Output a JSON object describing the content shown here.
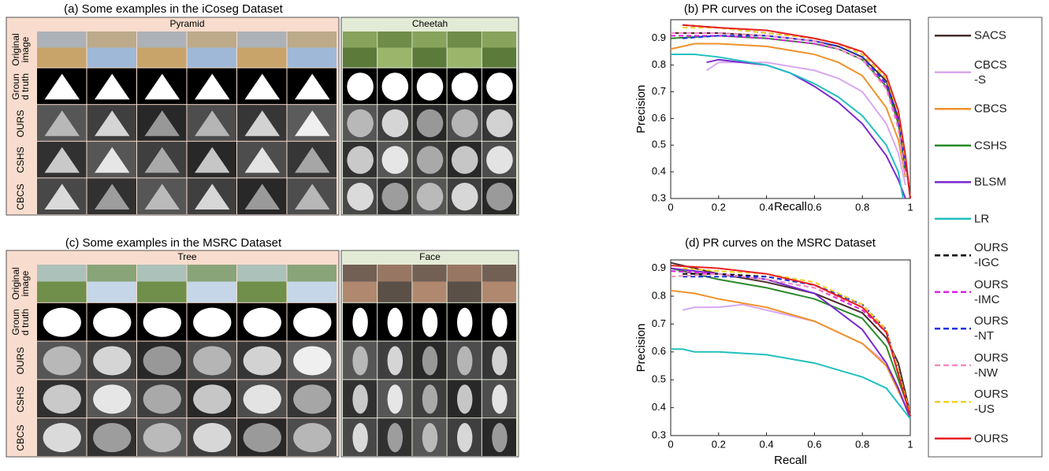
{
  "panels": [
    {
      "title": "(a) Some examples in the iCoseg Dataset",
      "groups": [
        "Pyramid",
        "Cheetah"
      ],
      "rows": [
        "Original\nimage",
        "Groun\nd truth",
        "OURS",
        "CSHS",
        "CBCS"
      ]
    },
    {
      "title": "(c) Some examples in the MSRC Dataset",
      "groups": [
        "Tree",
        "Face"
      ],
      "rows": [
        "Original\nimage",
        "Groun\nd truth",
        "OURS",
        "CSHS",
        "CBCS"
      ]
    }
  ],
  "chart_data": [
    {
      "type": "line",
      "title": "(b) PR curves on the iCoseg Dataset",
      "x_label": "Recall",
      "y_label": "Precision",
      "xlim": [
        0,
        1
      ],
      "ylim": [
        0.3,
        0.97
      ],
      "xticks": [
        0,
        0.2,
        0.4,
        0.6,
        0.8,
        1
      ],
      "yticks": [
        0.3,
        0.4,
        0.5,
        0.6,
        0.7,
        0.8,
        0.9
      ],
      "series": [
        {
          "name": "SACS",
          "color": "#4a2c2c",
          "dashed": false,
          "x": [
            0,
            0.2,
            0.4,
            0.6,
            0.7,
            0.8,
            0.9,
            0.95,
            0.98,
            1
          ],
          "values": [
            0.92,
            0.92,
            0.91,
            0.89,
            0.87,
            0.83,
            0.74,
            0.6,
            0.45,
            0.3
          ]
        },
        {
          "name": "CBCS\n-S",
          "color": "#d8a8f0",
          "dashed": false,
          "x": [
            0.15,
            0.2,
            0.4,
            0.6,
            0.7,
            0.8,
            0.9,
            0.95,
            0.98
          ],
          "values": [
            0.78,
            0.81,
            0.81,
            0.78,
            0.75,
            0.7,
            0.58,
            0.47,
            0.35
          ]
        },
        {
          "name": "CBCS",
          "color": "#f0922a",
          "dashed": false,
          "x": [
            0,
            0.1,
            0.2,
            0.4,
            0.6,
            0.7,
            0.8,
            0.9,
            0.95,
            0.98
          ],
          "values": [
            0.86,
            0.88,
            0.88,
            0.87,
            0.84,
            0.81,
            0.76,
            0.64,
            0.52,
            0.38
          ]
        },
        {
          "name": "CSHS",
          "color": "#2a8a2a",
          "dashed": false,
          "x": [
            0,
            0.2,
            0.4,
            0.6,
            0.7,
            0.8,
            0.9,
            0.95,
            0.98
          ],
          "values": [
            0.9,
            0.91,
            0.9,
            0.88,
            0.86,
            0.82,
            0.72,
            0.58,
            0.4
          ]
        },
        {
          "name": "BLSM",
          "color": "#7a2ad0",
          "dashed": false,
          "x": [
            0.15,
            0.2,
            0.3,
            0.4,
            0.5,
            0.6,
            0.7,
            0.8,
            0.9,
            0.95,
            0.98
          ],
          "values": [
            0.81,
            0.82,
            0.81,
            0.8,
            0.77,
            0.72,
            0.66,
            0.58,
            0.46,
            0.37,
            0.3
          ]
        },
        {
          "name": "LR",
          "color": "#22c0c0",
          "dashed": false,
          "x": [
            0,
            0.1,
            0.2,
            0.4,
            0.5,
            0.6,
            0.7,
            0.8,
            0.9,
            0.95,
            0.97
          ],
          "values": [
            0.84,
            0.84,
            0.83,
            0.8,
            0.77,
            0.73,
            0.68,
            0.61,
            0.5,
            0.4,
            0.3
          ]
        },
        {
          "name": "OURS\n-IGC",
          "color": "#000000",
          "dashed": true,
          "x": [
            0.05,
            0.2,
            0.4,
            0.6,
            0.7,
            0.8,
            0.9,
            0.95,
            0.98,
            1
          ],
          "values": [
            0.95,
            0.94,
            0.92,
            0.9,
            0.88,
            0.84,
            0.75,
            0.62,
            0.45,
            0.3
          ]
        },
        {
          "name": "OURS\n-IMC",
          "color": "#e020e0",
          "dashed": true,
          "x": [
            0,
            0.2,
            0.4,
            0.6,
            0.7,
            0.8,
            0.9,
            0.95,
            0.98
          ],
          "values": [
            0.91,
            0.91,
            0.9,
            0.88,
            0.86,
            0.82,
            0.72,
            0.58,
            0.4
          ]
        },
        {
          "name": "OURS\n-NT",
          "color": "#2030e0",
          "dashed": true,
          "x": [
            0.05,
            0.2,
            0.4,
            0.6,
            0.7,
            0.8,
            0.9,
            0.95,
            0.98
          ],
          "values": [
            0.9,
            0.91,
            0.91,
            0.89,
            0.87,
            0.83,
            0.73,
            0.6,
            0.42
          ]
        },
        {
          "name": "OURS\n-NW",
          "color": "#f090c0",
          "dashed": true,
          "x": [
            0,
            0.2,
            0.4,
            0.6,
            0.7,
            0.8,
            0.9,
            0.95,
            0.98
          ],
          "values": [
            0.92,
            0.92,
            0.91,
            0.89,
            0.86,
            0.82,
            0.71,
            0.56,
            0.38
          ]
        },
        {
          "name": "OURS\n-US",
          "color": "#f0d020",
          "dashed": true,
          "x": [
            0.05,
            0.2,
            0.4,
            0.6,
            0.7,
            0.8,
            0.9,
            0.95,
            0.98
          ],
          "values": [
            0.94,
            0.94,
            0.92,
            0.9,
            0.88,
            0.84,
            0.75,
            0.62,
            0.44
          ]
        },
        {
          "name": "OURS",
          "color": "#e82020",
          "dashed": false,
          "x": [
            0.05,
            0.2,
            0.4,
            0.6,
            0.7,
            0.8,
            0.9,
            0.95,
            0.98,
            1
          ],
          "values": [
            0.95,
            0.94,
            0.93,
            0.9,
            0.88,
            0.85,
            0.76,
            0.63,
            0.46,
            0.3
          ]
        }
      ]
    },
    {
      "type": "line",
      "title": "(d) PR curves on the MSRC Dataset",
      "x_label": "Recall",
      "y_label": "Precision",
      "xlim": [
        0,
        1
      ],
      "ylim": [
        0.3,
        0.93
      ],
      "xticks": [
        0,
        0.2,
        0.4,
        0.6,
        0.8,
        1
      ],
      "yticks": [
        0.3,
        0.4,
        0.5,
        0.6,
        0.7,
        0.8,
        0.9
      ],
      "series": [
        {
          "color": "#4a2c2c",
          "dashed": false,
          "x": [
            0,
            0.2,
            0.4,
            0.6,
            0.8,
            0.9,
            0.95,
            1
          ],
          "values": [
            0.92,
            0.88,
            0.85,
            0.81,
            0.74,
            0.65,
            0.56,
            0.38
          ]
        },
        {
          "color": "#d8a8f0",
          "dashed": false,
          "x": [
            0.05,
            0.1,
            0.2,
            0.3,
            0.35,
            0.4,
            0.6,
            0.8,
            0.9,
            1
          ],
          "values": [
            0.75,
            0.76,
            0.76,
            0.77,
            0.76,
            0.75,
            0.71,
            0.63,
            0.56,
            0.37
          ]
        },
        {
          "color": "#f0922a",
          "dashed": false,
          "x": [
            0,
            0.1,
            0.2,
            0.4,
            0.6,
            0.8,
            0.9,
            1
          ],
          "values": [
            0.82,
            0.81,
            0.79,
            0.76,
            0.71,
            0.63,
            0.55,
            0.37
          ]
        },
        {
          "color": "#2a8a2a",
          "dashed": false,
          "x": [
            0,
            0.2,
            0.4,
            0.6,
            0.8,
            0.9,
            1
          ],
          "values": [
            0.9,
            0.86,
            0.83,
            0.79,
            0.72,
            0.62,
            0.38
          ]
        },
        {
          "color": "#7a2ad0",
          "dashed": false,
          "x": [
            0,
            0.2,
            0.4,
            0.6,
            0.8,
            0.9,
            0.95,
            1
          ],
          "values": [
            0.9,
            0.88,
            0.86,
            0.81,
            0.68,
            0.56,
            0.47,
            0.36
          ]
        },
        {
          "color": "#22c0c0",
          "dashed": false,
          "x": [
            0,
            0.05,
            0.1,
            0.2,
            0.4,
            0.6,
            0.8,
            0.9,
            1
          ],
          "values": [
            0.61,
            0.61,
            0.6,
            0.6,
            0.59,
            0.56,
            0.51,
            0.47,
            0.36
          ]
        },
        {
          "color": "#000000",
          "dashed": true,
          "x": [
            0.05,
            0.2,
            0.4,
            0.6,
            0.8,
            0.9,
            1
          ],
          "values": [
            0.88,
            0.88,
            0.87,
            0.84,
            0.77,
            0.68,
            0.38
          ]
        },
        {
          "color": "#e020e0",
          "dashed": true,
          "x": [
            0,
            0.2,
            0.4,
            0.6,
            0.8,
            0.9,
            1
          ],
          "values": [
            0.89,
            0.88,
            0.86,
            0.83,
            0.75,
            0.67,
            0.37
          ]
        },
        {
          "color": "#2030e0",
          "dashed": true,
          "x": [
            0.05,
            0.2,
            0.4,
            0.6,
            0.8,
            0.9,
            1
          ],
          "values": [
            0.87,
            0.87,
            0.87,
            0.84,
            0.77,
            0.68,
            0.38
          ]
        },
        {
          "color": "#f090c0",
          "dashed": true,
          "x": [
            0,
            0.2,
            0.4,
            0.6,
            0.8,
            0.9,
            1
          ],
          "values": [
            0.87,
            0.88,
            0.86,
            0.83,
            0.76,
            0.67,
            0.37
          ]
        },
        {
          "color": "#f0d020",
          "dashed": true,
          "x": [
            0.05,
            0.2,
            0.4,
            0.6,
            0.8,
            0.9,
            1
          ],
          "values": [
            0.9,
            0.89,
            0.88,
            0.85,
            0.77,
            0.68,
            0.38
          ]
        },
        {
          "color": "#e82020",
          "dashed": false,
          "x": [
            0,
            0.2,
            0.4,
            0.6,
            0.8,
            0.9,
            1
          ],
          "values": [
            0.91,
            0.9,
            0.88,
            0.84,
            0.76,
            0.67,
            0.37
          ]
        }
      ]
    }
  ]
}
